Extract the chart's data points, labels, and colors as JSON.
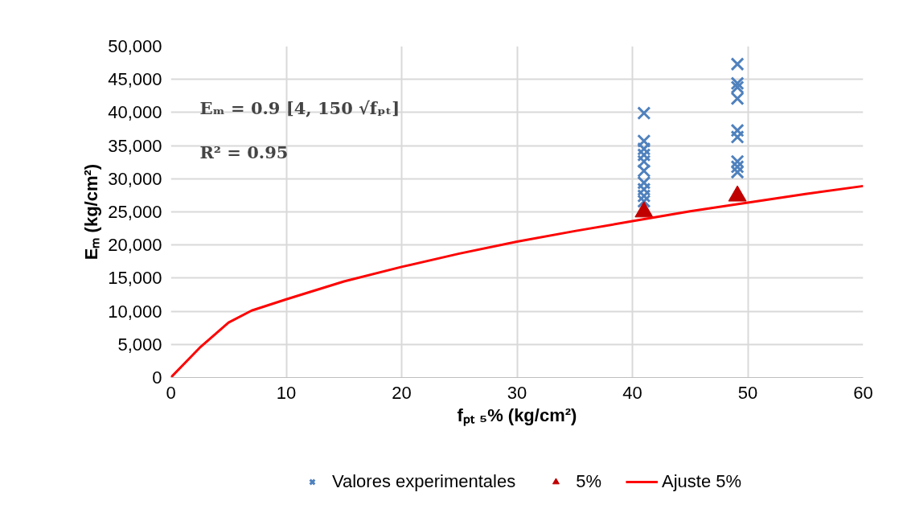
{
  "chart_data": {
    "type": "scatter",
    "xlabel": "fₚₜ ₅% (kg/cm²)",
    "ylabel": "Eₘ (kg/cm²)",
    "xlim": [
      0,
      60
    ],
    "xticks": [
      0,
      10,
      20,
      30,
      40,
      50,
      60
    ],
    "ylim": [
      0,
      50000
    ],
    "yticks": [
      {
        "value": 0,
        "label": "0"
      },
      {
        "value": 5000,
        "label": "5,000"
      },
      {
        "value": 10000,
        "label": "10,000"
      },
      {
        "value": 15000,
        "label": "15,000"
      },
      {
        "value": 20000,
        "label": "20,000"
      },
      {
        "value": 25000,
        "label": "25,000"
      },
      {
        "value": 30000,
        "label": "30,000"
      },
      {
        "value": 35000,
        "label": "35,000"
      },
      {
        "value": 40000,
        "label": "40,000"
      },
      {
        "value": 45000,
        "label": "45,000"
      },
      {
        "value": 50000,
        "label": "50,000"
      }
    ],
    "grid": true,
    "legend": "bottom",
    "annotations": [
      "Eₘ = 0.9 [4, 150 √fₚₜ]",
      "R² = 0.95"
    ],
    "series": [
      {
        "name": "Valores experimentales",
        "marker": "cross",
        "color": "#4f81bd",
        "x": [
          41,
          41,
          41,
          41,
          41,
          41,
          41,
          41,
          41,
          41,
          49.1,
          49.1,
          49.1,
          49.1,
          49.1,
          49.1,
          49.1,
          49.1,
          49.1
        ],
        "values": [
          39900,
          35700,
          34500,
          33600,
          32600,
          31200,
          29400,
          28400,
          27400,
          26600,
          47300,
          44400,
          43800,
          42100,
          37300,
          36300,
          32600,
          31800,
          31000
        ]
      },
      {
        "name": "5%",
        "marker": "triangle",
        "color": "#c00000",
        "x": [
          41,
          49.1
        ],
        "values": [
          25000,
          27400
        ]
      },
      {
        "name": "Ajuste 5%",
        "type": "line",
        "marker": "none",
        "color": "#ff0000",
        "x": [
          0,
          2.5,
          5,
          7,
          10,
          15,
          20,
          25,
          30,
          35,
          40,
          45,
          50,
          55,
          60
        ],
        "values": [
          0,
          4500,
          8300,
          10100,
          11800,
          14500,
          16700,
          18700,
          20500,
          22100,
          23600,
          25100,
          26400,
          27700,
          28900
        ]
      }
    ]
  }
}
